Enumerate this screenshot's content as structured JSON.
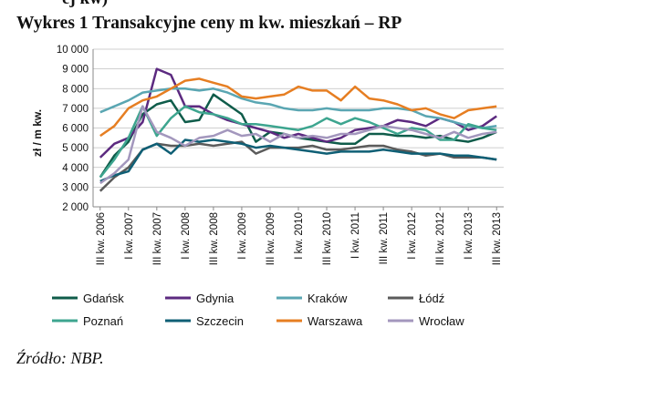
{
  "header": {
    "clipped_text": "ej kw)",
    "title": "Wykres 1 Transakcyjne ceny m kw. mieszkań – RP"
  },
  "source": "Źródło: NBP.",
  "chart_data": {
    "type": "line",
    "title": "",
    "xlabel": "",
    "ylabel": "zł / m kw.",
    "ylim": [
      2000,
      10000
    ],
    "yticks": [
      "2 000",
      "3 000",
      "4 000",
      "5 000",
      "6 000",
      "7 000",
      "8 000",
      "9 000",
      "10 000"
    ],
    "x": [
      "III kw. 2006",
      "IV kw. 2006",
      "I kw. 2007",
      "II kw. 2007",
      "III kw. 2007",
      "IV kw. 2007",
      "I kw. 2008",
      "II kw. 2008",
      "III kw. 2008",
      "IV kw. 2008",
      "I kw. 2009",
      "II kw. 2009",
      "III kw. 2009",
      "IV kw. 2009",
      "I kw. 2010",
      "II kw. 2010",
      "III kw. 2010",
      "IV kw. 2010",
      "I kw. 2011",
      "II kw. 2011",
      "III kw. 2011",
      "IV kw. 2011",
      "I kw. 2012",
      "II kw. 2012",
      "III kw. 2012",
      "IV kw. 2012",
      "I kw. 2013",
      "II kw. 2013",
      "III kw. 2013"
    ],
    "xtick_labels": [
      "III kw. 2006",
      "I kw. 2007",
      "III kw. 2007",
      "I kw. 2008",
      "III kw. 2008",
      "I kw. 2009",
      "III kw. 2009",
      "I kw. 2010",
      "III kw. 2010",
      "I kw. 2011",
      "III kw. 2011",
      "I kw. 2012",
      "III kw. 2012",
      "I kw. 2013",
      "III kw. 2013"
    ],
    "grid": true,
    "legend_position": "bottom",
    "series": [
      {
        "name": "Gdańsk",
        "color": "#0f5c4a",
        "values": [
          3500,
          4600,
          5300,
          6700,
          7200,
          7400,
          6300,
          6400,
          7700,
          7200,
          6700,
          5300,
          5800,
          5700,
          5500,
          5400,
          5300,
          5200,
          5200,
          5700,
          5700,
          5600,
          5600,
          5500,
          5600,
          5400,
          5300,
          5500,
          5800
        ]
      },
      {
        "name": "Gdynia",
        "color": "#5c2a80",
        "values": [
          4500,
          5200,
          5500,
          6300,
          9000,
          8700,
          7100,
          7100,
          6700,
          6400,
          6200,
          6000,
          5800,
          5500,
          5700,
          5500,
          5300,
          5500,
          5900,
          6000,
          6100,
          6400,
          6300,
          6100,
          6500,
          6300,
          5900,
          6100,
          6600
        ]
      },
      {
        "name": "Kraków",
        "color": "#5aa6b2",
        "values": [
          6800,
          7100,
          7400,
          7800,
          7900,
          8000,
          8000,
          7900,
          8000,
          7800,
          7500,
          7300,
          7200,
          7000,
          6900,
          6900,
          7000,
          6900,
          6900,
          6900,
          7000,
          7000,
          6900,
          6600,
          6500,
          6300,
          6100,
          6000,
          6100
        ]
      },
      {
        "name": "Łódź",
        "color": "#5b5b5b",
        "values": [
          2800,
          3500,
          4000,
          4900,
          5200,
          5100,
          5100,
          5200,
          5100,
          5200,
          5300,
          4700,
          5000,
          5000,
          5000,
          5100,
          4900,
          4900,
          5000,
          5100,
          5100,
          4900,
          4800,
          4600,
          4700,
          4500,
          4500,
          4500,
          4400
        ]
      },
      {
        "name": "Poznań",
        "color": "#3da58f",
        "values": [
          3500,
          4400,
          5500,
          7100,
          5600,
          6500,
          7100,
          6800,
          6700,
          6500,
          6200,
          6200,
          6100,
          6000,
          5900,
          6100,
          6500,
          6200,
          6500,
          6300,
          6000,
          5700,
          6000,
          5900,
          5400,
          5400,
          6200,
          6000,
          5900
        ]
      },
      {
        "name": "Szczecin",
        "color": "#0f5f75",
        "values": [
          3300,
          3600,
          3800,
          4900,
          5200,
          4700,
          5400,
          5300,
          5400,
          5300,
          5200,
          5000,
          5100,
          5000,
          4900,
          4800,
          4700,
          4800,
          4800,
          4800,
          4900,
          4800,
          4700,
          4700,
          4700,
          4600,
          4600,
          4500,
          4400
        ]
      },
      {
        "name": "Warszawa",
        "color": "#e67e22",
        "values": [
          5600,
          6100,
          7000,
          7400,
          7600,
          8000,
          8400,
          8500,
          8300,
          8100,
          7600,
          7500,
          7600,
          7700,
          8100,
          7900,
          7900,
          7400,
          8100,
          7500,
          7400,
          7200,
          6900,
          7000,
          6700,
          6500,
          6900,
          7000,
          7100
        ]
      },
      {
        "name": "Wrocław",
        "color": "#a397bd",
        "values": [
          3200,
          3700,
          4400,
          7100,
          5800,
          5500,
          5100,
          5500,
          5600,
          5900,
          5600,
          5700,
          5300,
          5700,
          5500,
          5600,
          5500,
          5700,
          5700,
          5900,
          6100,
          6000,
          5900,
          5700,
          5500,
          5800,
          5500,
          5700,
          5800
        ]
      }
    ]
  }
}
